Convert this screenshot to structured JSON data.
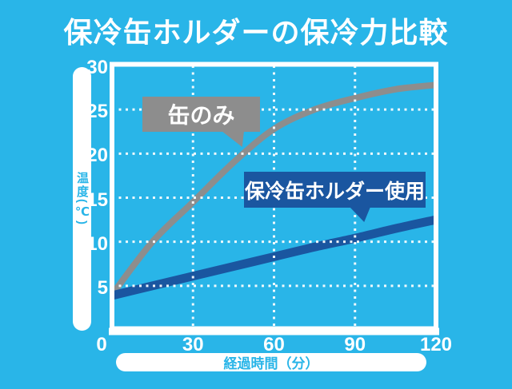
{
  "title": "保冷缶ホルダーの保冷力比較",
  "y_axis": {
    "label": "温度(℃)"
  },
  "x_axis": {
    "label": "経過時間（分）"
  },
  "callouts": [
    {
      "label": "缶のみ",
      "color": "#8D8D8D"
    },
    {
      "label": "保冷缶ホルダー使用",
      "color": "#1A56A0"
    }
  ],
  "colors": {
    "background": "#29B5E8",
    "title_text": "#FFFFFF",
    "plot_border": "#FFFFFF",
    "grid_dots": "#FFFFFF",
    "tick_text": "#FFFFFF",
    "axis_pill_bg": "#FFFFFF",
    "axis_pill_text": "#29B5E8",
    "series_can_only": "#8D8D8D",
    "series_holder": "#1A56A0"
  },
  "chart_data": {
    "type": "line",
    "title": "保冷缶ホルダーの保冷力比較",
    "xlabel": "経過時間（分）",
    "ylabel": "温度(℃)",
    "x": [
      0,
      15,
      30,
      45,
      60,
      75,
      90,
      105,
      120
    ],
    "series": [
      {
        "name": "缶のみ",
        "color": "#8D8D8D",
        "stroke_width": 8,
        "values": [
          4.0,
          10.0,
          14.5,
          19.0,
          22.8,
          25.0,
          26.3,
          27.3,
          27.8
        ]
      },
      {
        "name": "保冷缶ホルダー使用",
        "color": "#1A56A0",
        "stroke_width": 11,
        "values": [
          3.9,
          5.0,
          6.1,
          7.2,
          8.3,
          9.4,
          10.4,
          11.5,
          12.5
        ]
      }
    ],
    "xlim": [
      0,
      120
    ],
    "ylim": [
      0,
      30
    ],
    "xticks": [
      0,
      30,
      60,
      90,
      120
    ],
    "yticks": [
      0,
      5,
      10,
      15,
      20,
      25,
      30
    ],
    "grid": "dotted white, drawn over series lines",
    "legend": "inline callout labels"
  }
}
